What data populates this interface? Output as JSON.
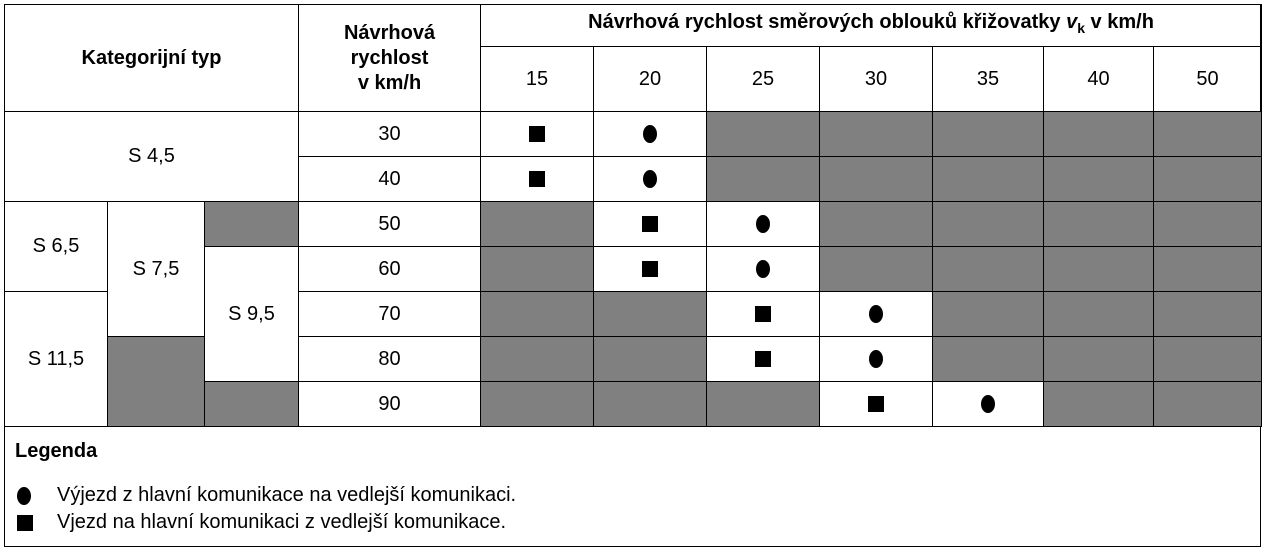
{
  "header": {
    "category_type": "Kategorijní typ",
    "design_speed": [
      "Návrhová",
      "rychlost",
      "v km/h"
    ],
    "curve_speed_title_prefix": "Návrhová rychlost směrových oblouků křižovatky ",
    "curve_speed_var": "v",
    "curve_speed_sub": "k",
    "curve_speed_title_suffix": " v km/h",
    "speeds": [
      "15",
      "20",
      "25",
      "30",
      "35",
      "40",
      "50"
    ]
  },
  "categories": {
    "s45": "S 4,5",
    "s65": "S 6,5",
    "s75": "S 7,5",
    "s95": "S 9,5",
    "s115": "S 11,5"
  },
  "rows": [
    {
      "speed": "30",
      "cells": [
        "square",
        "circle",
        "gray",
        "gray",
        "gray",
        "gray",
        "gray"
      ]
    },
    {
      "speed": "40",
      "cells": [
        "square",
        "circle",
        "gray",
        "gray",
        "gray",
        "gray",
        "gray"
      ]
    },
    {
      "speed": "50",
      "cells": [
        "gray",
        "square",
        "circle",
        "gray",
        "gray",
        "gray",
        "gray"
      ]
    },
    {
      "speed": "60",
      "cells": [
        "gray",
        "square",
        "circle",
        "gray",
        "gray",
        "gray",
        "gray"
      ]
    },
    {
      "speed": "70",
      "cells": [
        "gray",
        "gray",
        "square",
        "circle",
        "gray",
        "gray",
        "gray"
      ]
    },
    {
      "speed": "80",
      "cells": [
        "gray",
        "gray",
        "square",
        "circle",
        "gray",
        "gray",
        "gray"
      ]
    },
    {
      "speed": "90",
      "cells": [
        "gray",
        "gray",
        "gray",
        "square",
        "circle",
        "gray",
        "gray"
      ]
    }
  ],
  "legend": {
    "title": "Legenda",
    "circle_text": "Výjezd z hlavní komunikace na vedlejší komunikaci.",
    "square_text": "Vjezd na hlavní komunikaci z vedlejší komunikace."
  },
  "colors": {
    "shade": "#808080"
  }
}
